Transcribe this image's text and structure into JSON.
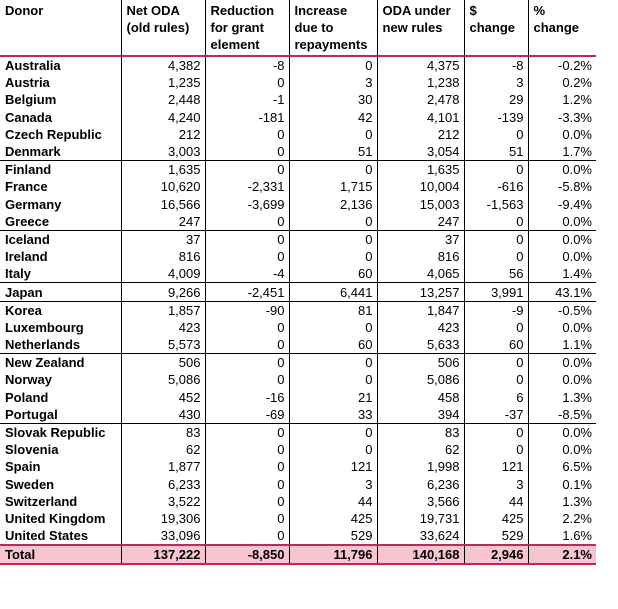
{
  "headers": [
    "Donor",
    "Net ODA (old rules)",
    "Reduction for grant element",
    "Increase due to repayments",
    "ODA under new rules",
    "$ change",
    "% change"
  ],
  "rows": [
    [
      "Australia",
      "4,382",
      "-8",
      "0",
      "4,375",
      "-8",
      "-0.2%"
    ],
    [
      "Austria",
      "1,235",
      "0",
      "3",
      "1,238",
      "3",
      "0.2%"
    ],
    [
      "Belgium",
      "2,448",
      "-1",
      "30",
      "2,478",
      "29",
      "1.2%"
    ],
    [
      "Canada",
      "4,240",
      "-181",
      "42",
      "4,101",
      "-139",
      "-3.3%"
    ],
    [
      "Czech Republic",
      "212",
      "0",
      "0",
      "212",
      "0",
      "0.0%"
    ],
    [
      "Denmark",
      "3,003",
      "0",
      "51",
      "3,054",
      "51",
      "1.7%"
    ],
    [
      "Finland",
      "1,635",
      "0",
      "0",
      "1,635",
      "0",
      "0.0%"
    ],
    [
      "France",
      "10,620",
      "-2,331",
      "1,715",
      "10,004",
      "-616",
      "-5.8%"
    ],
    [
      "Germany",
      "16,566",
      "-3,699",
      "2,136",
      "15,003",
      "-1,563",
      "-9.4%"
    ],
    [
      "Greece",
      "247",
      "0",
      "0",
      "247",
      "0",
      "0.0%"
    ],
    [
      "Iceland",
      "37",
      "0",
      "0",
      "37",
      "0",
      "0.0%"
    ],
    [
      "Ireland",
      "816",
      "0",
      "0",
      "816",
      "0",
      "0.0%"
    ],
    [
      "Italy",
      "4,009",
      "-4",
      "60",
      "4,065",
      "56",
      "1.4%"
    ],
    [
      "Japan",
      "9,266",
      "-2,451",
      "6,441",
      "13,257",
      "3,991",
      "43.1%"
    ],
    [
      "Korea",
      "1,857",
      "-90",
      "81",
      "1,847",
      "-9",
      "-0.5%"
    ],
    [
      "Luxembourg",
      "423",
      "0",
      "0",
      "423",
      "0",
      "0.0%"
    ],
    [
      "Netherlands",
      "5,573",
      "0",
      "60",
      "5,633",
      "60",
      "1.1%"
    ],
    [
      "New Zealand",
      "506",
      "0",
      "0",
      "506",
      "0",
      "0.0%"
    ],
    [
      "Norway",
      "5,086",
      "0",
      "0",
      "5,086",
      "0",
      "0.0%"
    ],
    [
      "Poland",
      "452",
      "-16",
      "21",
      "458",
      "6",
      "1.3%"
    ],
    [
      "Portugal",
      "430",
      "-69",
      "33",
      "394",
      "-37",
      "-8.5%"
    ],
    [
      "Slovak Republic",
      "83",
      "0",
      "0",
      "83",
      "0",
      "0.0%"
    ],
    [
      "Slovenia",
      "62",
      "0",
      "0",
      "62",
      "0",
      "0.0%"
    ],
    [
      "Spain",
      "1,877",
      "0",
      "121",
      "1,998",
      "121",
      "6.5%"
    ],
    [
      "Sweden",
      "6,233",
      "0",
      "3",
      "6,236",
      "3",
      "0.1%"
    ],
    [
      "Switzerland",
      "3,522",
      "0",
      "44",
      "3,566",
      "44",
      "1.3%"
    ],
    [
      "United Kingdom",
      "19,306",
      "0",
      "425",
      "19,731",
      "425",
      "2.2%"
    ],
    [
      "United States",
      "33,096",
      "0",
      "529",
      "33,624",
      "529",
      "1.6%"
    ]
  ],
  "total": [
    "Total",
    "137,222",
    "-8,850",
    "11,796",
    "140,168",
    "2,946",
    "2.1%"
  ],
  "colors": {
    "accent": "#c0285a",
    "total_fill": "#f7c4d2",
    "grid": "#000000"
  }
}
